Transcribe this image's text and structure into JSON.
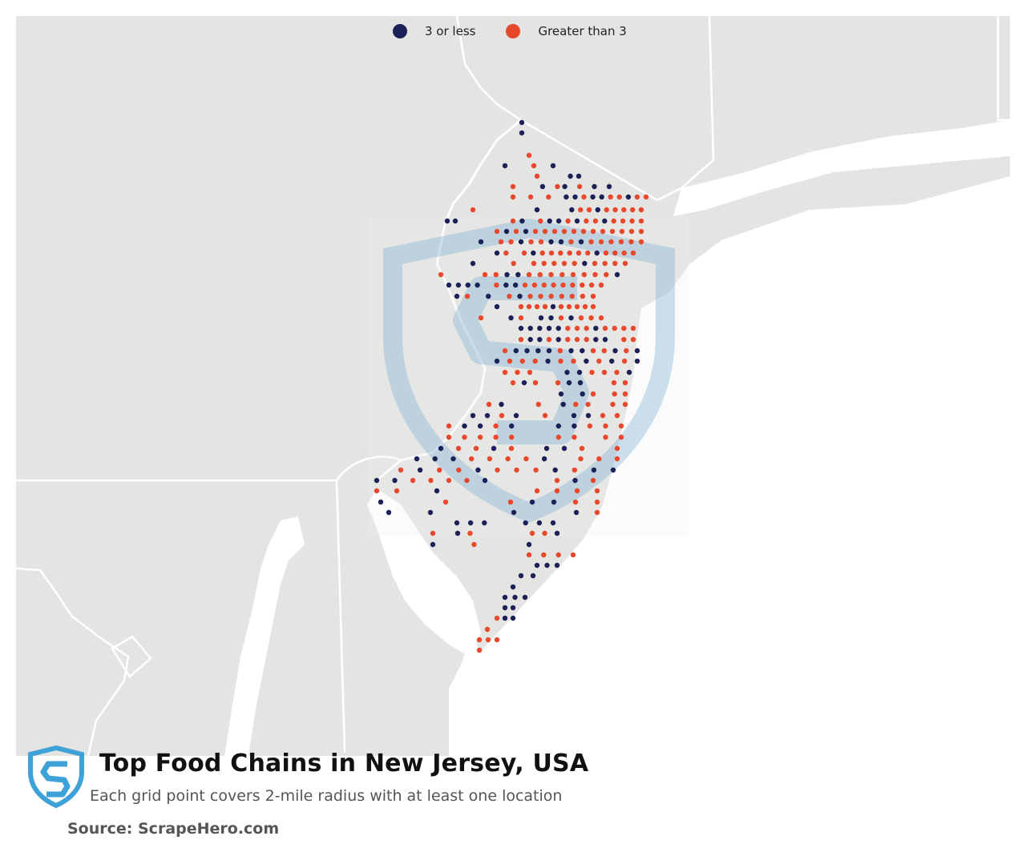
{
  "title": "Top Food Chains in New Jersey, USA",
  "subtitle": "Each grid point covers 2-mile radius with at least one location",
  "source": "Source: ScrapeHero.com",
  "legend": [
    {
      "label": "3 or less",
      "color": "#1b2157"
    },
    {
      "label": "Greater than 3",
      "color": "#e8482b"
    }
  ],
  "colors": {
    "land": "#e4e4e3",
    "water": "#ffffff",
    "border": "#ffffff",
    "low": "#1b2157",
    "high": "#e8482b",
    "watermark": "#bcd6e6",
    "logo": "#3ea1d8"
  },
  "icons": [
    "scrapehero-logo-icon",
    "scrapehero-watermark-icon"
  ]
}
